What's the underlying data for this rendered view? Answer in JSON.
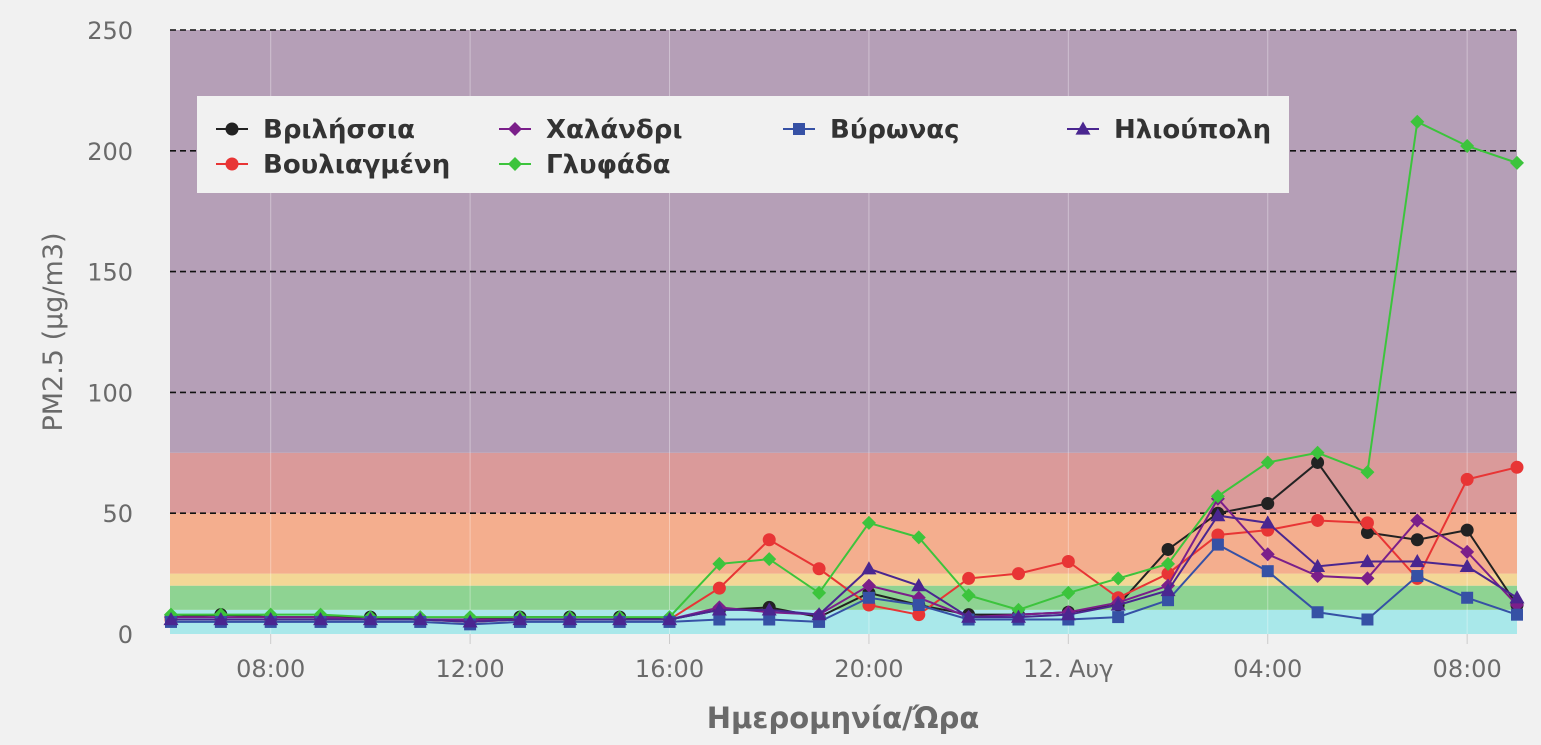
{
  "chart_data": {
    "type": "line",
    "title": "",
    "xlabel": "Ημερομηνία/Ώρα",
    "ylabel": "PM2.5 (μg/m3)",
    "ylim": [
      0,
      250
    ],
    "yticks": [
      0,
      50,
      100,
      150,
      200,
      250
    ],
    "grid": "horizontal dashed",
    "legend_position": "top-left, inside plot",
    "x_tick_labels": [
      {
        "hour": 8,
        "label": "08:00"
      },
      {
        "hour": 12,
        "label": "12:00"
      },
      {
        "hour": 16,
        "label": "16:00"
      },
      {
        "hour": 20,
        "label": "20:00"
      },
      {
        "hour": 24,
        "label": "12. Αυγ"
      },
      {
        "hour": 28,
        "label": "04:00"
      },
      {
        "hour": 32,
        "label": "08:00"
      }
    ],
    "x_hours": [
      6,
      7,
      8,
      9,
      10,
      11,
      12,
      13,
      14,
      15,
      16,
      17,
      18,
      19,
      20,
      21,
      22,
      23,
      24,
      25,
      26,
      27,
      28,
      29,
      30,
      31,
      32,
      33
    ],
    "bands": [
      {
        "from": 0,
        "to": 10,
        "color": "#a9e8ea"
      },
      {
        "from": 10,
        "to": 20,
        "color": "#8ed392"
      },
      {
        "from": 20,
        "to": 25,
        "color": "#f3d796"
      },
      {
        "from": 25,
        "to": 50,
        "color": "#f4ae8e"
      },
      {
        "from": 50,
        "to": 75,
        "color": "#da9a9a"
      },
      {
        "from": 75,
        "to": 250,
        "color": "#b59fb7"
      }
    ],
    "series": [
      {
        "name": "Βριλήσσια",
        "color": "#222222",
        "marker": "circle",
        "values": [
          7,
          8,
          7,
          7,
          7,
          6,
          6,
          7,
          7,
          7,
          6,
          10,
          11,
          7,
          17,
          12,
          8,
          8,
          9,
          12,
          35,
          50,
          54,
          71,
          42,
          39,
          43,
          12
        ]
      },
      {
        "name": "Βουλιαγμένη",
        "color": "#e83535",
        "marker": "circle",
        "values": [
          6,
          6,
          6,
          6,
          6,
          6,
          5,
          6,
          6,
          6,
          6,
          19,
          39,
          27,
          12,
          8,
          23,
          25,
          30,
          15,
          25,
          41,
          43,
          47,
          46,
          23,
          64,
          69
        ]
      },
      {
        "name": "Χαλάνδρι",
        "color": "#7b1f8a",
        "marker": "diamond",
        "values": [
          7,
          7,
          7,
          7,
          6,
          6,
          6,
          6,
          6,
          6,
          6,
          11,
          9,
          8,
          20,
          15,
          7,
          8,
          9,
          13,
          20,
          56,
          33,
          24,
          23,
          47,
          34,
          12
        ]
      },
      {
        "name": "Γλυφάδα",
        "color": "#3cc43c",
        "marker": "diamond",
        "values": [
          8,
          8,
          8,
          8,
          7,
          7,
          7,
          7,
          7,
          7,
          7,
          29,
          31,
          17,
          46,
          40,
          16,
          10,
          17,
          23,
          29,
          57,
          71,
          75,
          67,
          212,
          202,
          195
        ]
      },
      {
        "name": "Βύρωνας",
        "color": "#3651a5",
        "marker": "square",
        "values": [
          5,
          5,
          5,
          5,
          5,
          5,
          4,
          5,
          5,
          5,
          5,
          6,
          6,
          5,
          15,
          12,
          6,
          6,
          6,
          7,
          14,
          37,
          26,
          9,
          6,
          24,
          15,
          8
        ]
      },
      {
        "name": "Ηλιούπολη",
        "color": "#4a2690",
        "marker": "triangle",
        "values": [
          6,
          6,
          6,
          6,
          6,
          6,
          5,
          6,
          6,
          6,
          6,
          10,
          10,
          8,
          27,
          20,
          7,
          7,
          8,
          12,
          18,
          49,
          46,
          28,
          30,
          30,
          28,
          15
        ]
      }
    ],
    "legend": {
      "rows": [
        [
          "Βριλήσσια",
          "Χαλάνδρι",
          "Βύρωνας",
          "Ηλιούπολη"
        ],
        [
          "Βουλιαγμένη",
          "Γλυφάδα"
        ]
      ]
    }
  }
}
